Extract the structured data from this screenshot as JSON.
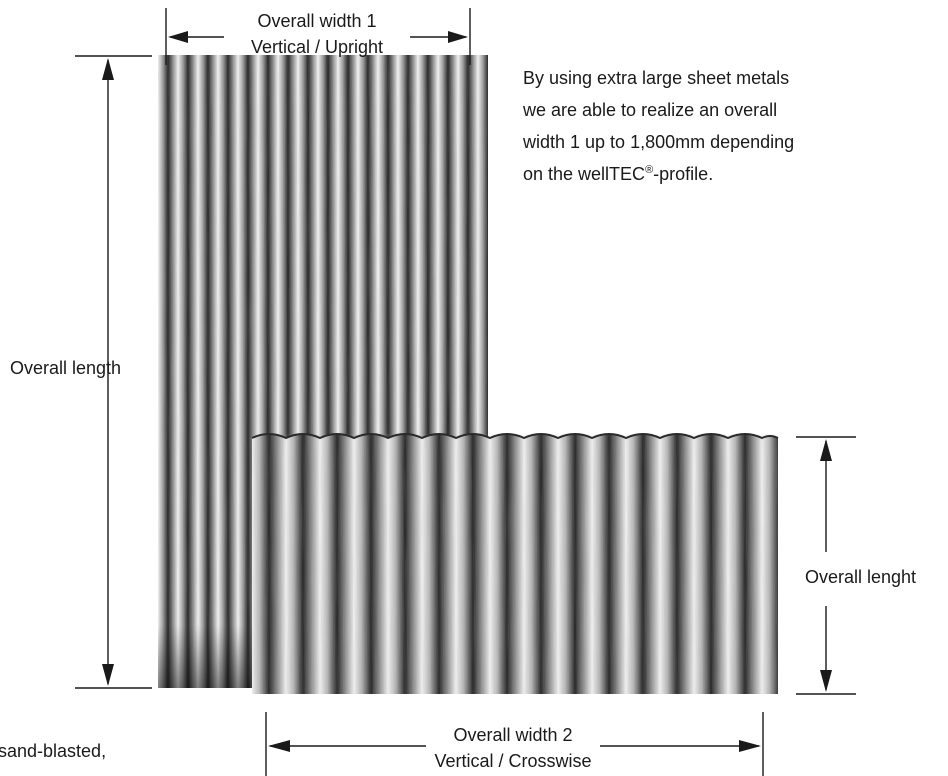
{
  "top_dimension": {
    "line1": "Overall width 1",
    "line2": "Vertical / Upright"
  },
  "left_dimension": {
    "label": "Overall length"
  },
  "right_dimension": {
    "label": "Overall lenght"
  },
  "bottom_dimension": {
    "line1": "Overall width 2",
    "line2": "Vertical / Crosswise"
  },
  "description": {
    "lines": [
      "By using extra large sheet metals",
      "we are able to realize an overall",
      "width 1 up to 1,800mm depending"
    ],
    "last_prefix": "on the wellTEC",
    "registered": "®",
    "last_suffix": "-profile."
  },
  "bottom_left_fragment": "sand-blasted,",
  "colors": {
    "line": "#1a1a1a",
    "metal_dark": "#1c1c1c",
    "metal_light": "#f2f2f2"
  }
}
